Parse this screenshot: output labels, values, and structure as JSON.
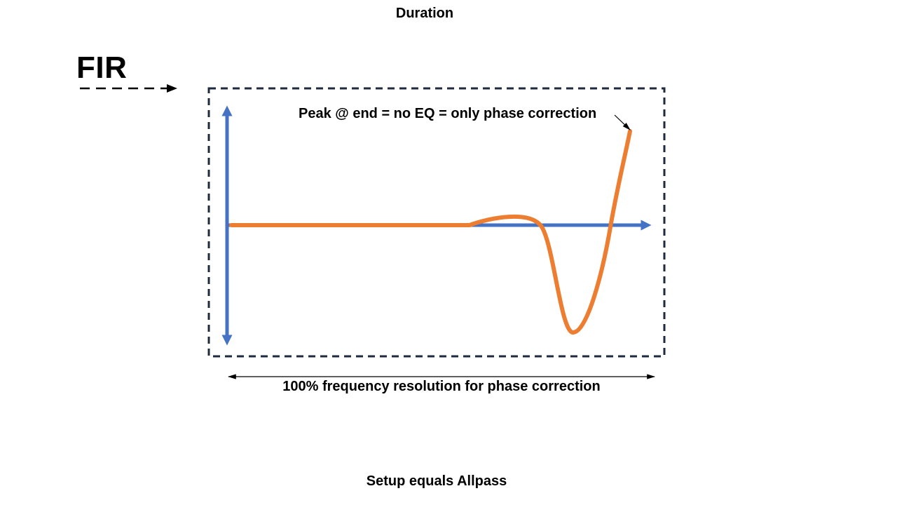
{
  "header": {
    "title": "Duration"
  },
  "diagram": {
    "filter_label": "FIR",
    "annotation": "Peak @ end = no EQ = only phase correction",
    "span_label": "100% frequency resolution for phase correction",
    "colors": {
      "axes": "#4472C4",
      "response_curve": "#ED7D31",
      "frame": "#1F2A3C",
      "text": "#000000"
    }
  },
  "footer": {
    "caption": "Setup equals Allpass"
  }
}
